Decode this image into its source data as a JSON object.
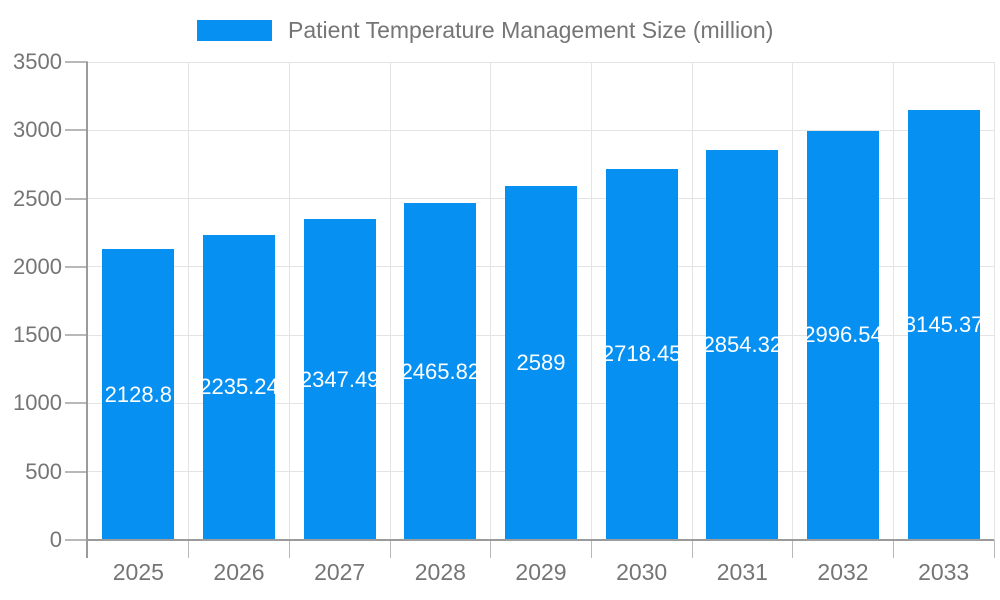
{
  "chart_data": {
    "type": "bar",
    "title": "Patient Temperature Management Size (million)",
    "legend": [
      "Patient Temperature Management Size (million)"
    ],
    "legend_position": "top",
    "categories": [
      "2025",
      "2026",
      "2027",
      "2028",
      "2029",
      "2030",
      "2031",
      "2032",
      "2033"
    ],
    "values": [
      2128.8,
      2235.24,
      2347.49,
      2465.82,
      2589,
      2718.45,
      2854.32,
      2996.54,
      3145.37
    ],
    "bar_labels": [
      "2128.8",
      "2235.24",
      "2347.49",
      "2465.82",
      "2589",
      "2718.45",
      "2854.32",
      "2996.54",
      "3145.37"
    ],
    "xlabel": "",
    "ylabel": "",
    "ylim": [
      0,
      3500
    ],
    "ytick_step": 500,
    "yticks": [
      "0",
      "500",
      "1000",
      "1500",
      "2000",
      "2500",
      "3000",
      "3500"
    ],
    "grid": true,
    "colors": {
      "bar": "#0590f2",
      "bar_label_text": "#ffffff",
      "axis_text": "#757575",
      "axis_line": "#9b9b9b",
      "tick": "#b8b8b8",
      "grid": "#e4e4e4",
      "background": "#ffffff"
    }
  }
}
